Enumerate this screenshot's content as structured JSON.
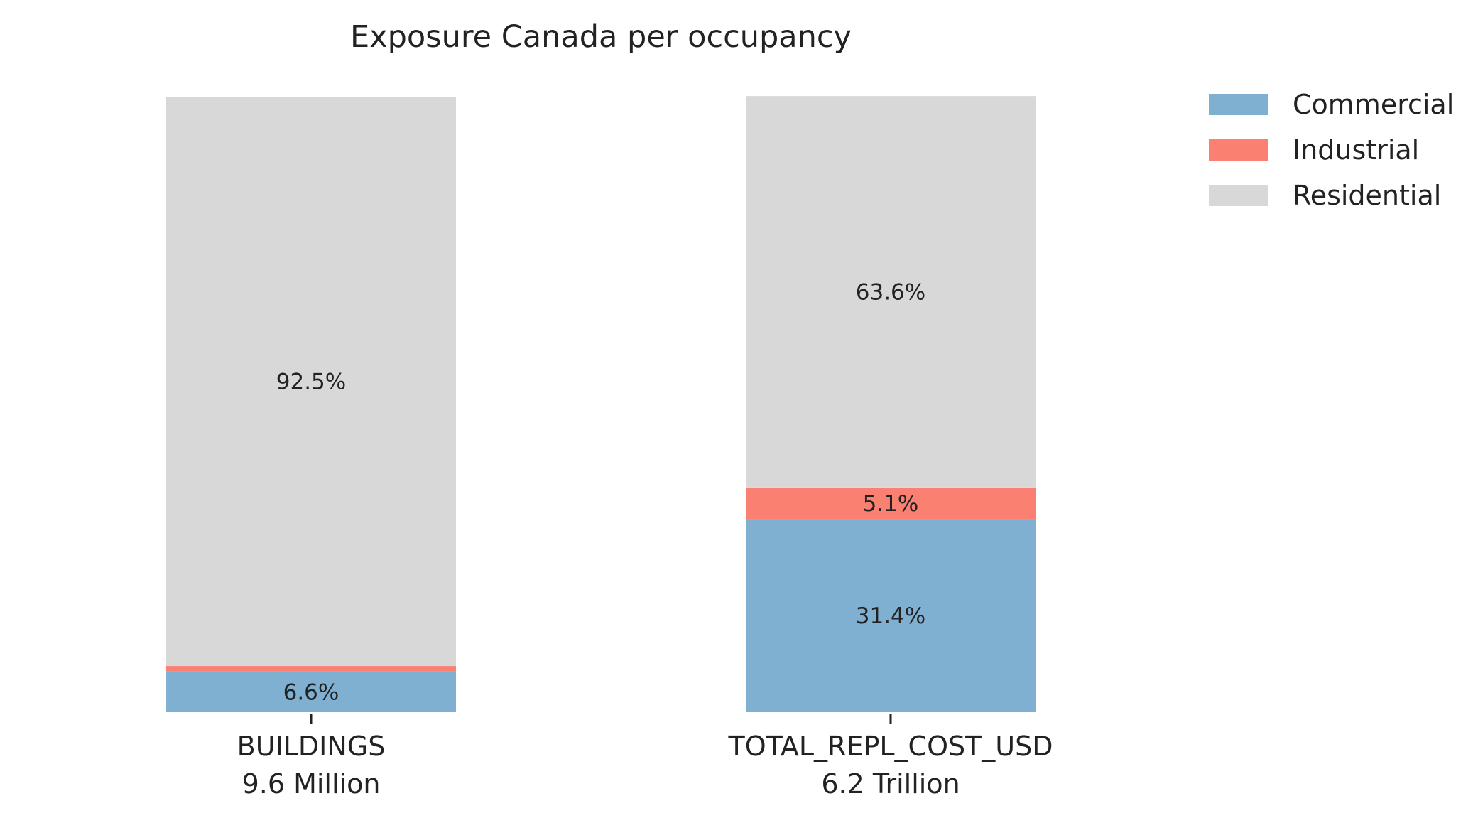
{
  "chart_data": {
    "type": "bar",
    "stacked": true,
    "normalized_percent": true,
    "title": "Exposure Canada per occupancy",
    "categories": [
      "BUILDINGS",
      "TOTAL_REPL_COST_USD"
    ],
    "category_subtitles": [
      "9.6 Million",
      "6.2 Trillion"
    ],
    "series": [
      {
        "name": "Commercial",
        "color": "#7fb0d2",
        "values": [
          6.6,
          31.4
        ],
        "labels": [
          "6.6%",
          "31.4%"
        ]
      },
      {
        "name": "Industrial",
        "color": "#fa8072",
        "values": [
          0.9,
          5.1
        ],
        "labels": [
          "",
          "5.1%"
        ]
      },
      {
        "name": "Residential",
        "color": "#d8d8d8",
        "values": [
          92.5,
          63.6
        ],
        "labels": [
          "92.5%",
          "63.6%"
        ]
      }
    ],
    "ylim": [
      0,
      100
    ],
    "xlabel": "",
    "ylabel": "",
    "grid": false,
    "legend_position": "top-right"
  }
}
